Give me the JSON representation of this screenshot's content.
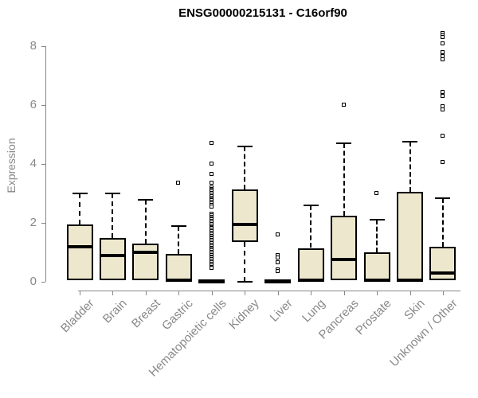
{
  "chart_data": {
    "type": "boxplot",
    "title": "ENSG00000215131 - C16orf90",
    "xlabel": "",
    "ylabel": "Expression",
    "yticks": [
      0,
      2,
      4,
      6,
      8
    ],
    "ylim": [
      -0.3,
      8.6
    ],
    "grid": false,
    "legend": false,
    "colors": {
      "box_fill": "#EDE8CD",
      "box_border": "#000000",
      "median": "#000000",
      "whisker": "#000000",
      "axis": "#888888",
      "tick_label": "#888888",
      "title": "#000000",
      "background": "#ffffff"
    },
    "categories": [
      "Bladder",
      "Brain",
      "Breast",
      "Gastric",
      "Hematopoietic cells",
      "Kidney",
      "Liver",
      "Lung",
      "Pancreas",
      "Prostate",
      "Skin",
      "Unknown / Other"
    ],
    "boxes": [
      {
        "category": "Bladder",
        "whisker_low": 0,
        "q1": 0.05,
        "median": 1.2,
        "q3": 1.95,
        "whisker_high": 3.0,
        "outliers": []
      },
      {
        "category": "Brain",
        "whisker_low": 0,
        "q1": 0.05,
        "median": 0.9,
        "q3": 1.5,
        "whisker_high": 3.0,
        "outliers": []
      },
      {
        "category": "Breast",
        "whisker_low": 0,
        "q1": 0.05,
        "median": 1.0,
        "q3": 1.3,
        "whisker_high": 2.8,
        "outliers": []
      },
      {
        "category": "Gastric",
        "whisker_low": 0,
        "q1": 0,
        "median": 0.05,
        "q3": 0.95,
        "whisker_high": 1.9,
        "outliers": [
          3.35
        ]
      },
      {
        "category": "Hematopoietic cells",
        "whisker_low": 0,
        "q1": 0,
        "median": 0.02,
        "q3": 0.05,
        "whisker_high": 0.1,
        "outliers": [
          4.7,
          4.0,
          3.65,
          3.35,
          3.2,
          3.15,
          3.1,
          3.05,
          3.0,
          2.95,
          2.9,
          2.85,
          2.8,
          2.75,
          2.7,
          2.65,
          2.6,
          2.55,
          2.3,
          2.25,
          2.2,
          2.15,
          2.1,
          2.05,
          2.0,
          1.95,
          1.9,
          1.85,
          1.8,
          1.75,
          1.7,
          1.65,
          1.6,
          1.55,
          1.5,
          1.45,
          1.4,
          1.35,
          1.3,
          1.25,
          1.2,
          1.15,
          1.1,
          1.05,
          1.0,
          0.95,
          0.9,
          0.85,
          0.8,
          0.75,
          0.7,
          0.65,
          0.6,
          0.55,
          0.5,
          0.45
        ]
      },
      {
        "category": "Kidney",
        "whisker_low": 0,
        "q1": 1.35,
        "median": 1.95,
        "q3": 3.15,
        "whisker_high": 4.6,
        "outliers": []
      },
      {
        "category": "Liver",
        "whisker_low": 0,
        "q1": 0,
        "median": 0.02,
        "q3": 0.05,
        "whisker_high": 0.1,
        "outliers": [
          1.6,
          0.9,
          0.8,
          0.65,
          0.4,
          0.35
        ]
      },
      {
        "category": "Lung",
        "whisker_low": 0,
        "q1": 0,
        "median": 0.05,
        "q3": 1.15,
        "whisker_high": 2.6,
        "outliers": []
      },
      {
        "category": "Pancreas",
        "whisker_low": 0,
        "q1": 0.05,
        "median": 0.75,
        "q3": 2.25,
        "whisker_high": 4.7,
        "outliers": [
          6.0
        ]
      },
      {
        "category": "Prostate",
        "whisker_low": 0,
        "q1": 0,
        "median": 0.05,
        "q3": 1.0,
        "whisker_high": 2.1,
        "outliers": [
          3.0
        ]
      },
      {
        "category": "Skin",
        "whisker_low": 0,
        "q1": 0,
        "median": 0.05,
        "q3": 3.05,
        "whisker_high": 4.75,
        "outliers": []
      },
      {
        "category": "Unknown / Other",
        "whisker_low": 0,
        "q1": 0.05,
        "median": 0.3,
        "q3": 1.2,
        "whisker_high": 2.85,
        "outliers": [
          8.45,
          8.35,
          8.3,
          8.1,
          7.8,
          7.65,
          7.55,
          6.45,
          6.3,
          5.95,
          5.85,
          4.95,
          4.05
        ]
      }
    ]
  }
}
